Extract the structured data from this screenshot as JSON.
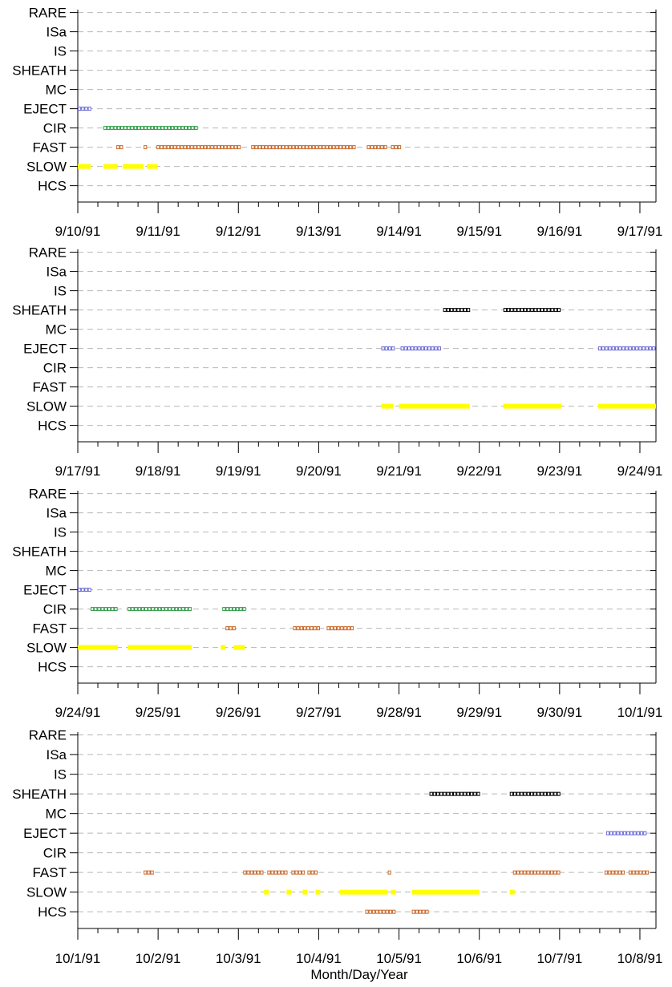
{
  "chart_data": {
    "type": "timeline",
    "xlabel": "Month/Day/Year",
    "categories": [
      "RARE",
      "ISa",
      "IS",
      "SHEATH",
      "MC",
      "EJECT",
      "CIR",
      "FAST",
      "SLOW",
      "HCS"
    ],
    "category_colors": {
      "EJECT": "#6b6bd6",
      "CIR": "#2e9b46",
      "FAST": "#c8682a",
      "SHEATH": "#000000",
      "SLOW": "#ffff00",
      "HCS": "#c8682a"
    },
    "grid": true,
    "panels": [
      {
        "ticks": [
          "9/10/91",
          "9/11/91",
          "9/12/91",
          "9/13/91",
          "9/14/91",
          "9/15/91",
          "9/16/91",
          "9/17/91"
        ],
        "segments": [
          {
            "cat": "EJECT",
            "start": 0.0,
            "end": 0.16
          },
          {
            "cat": "CIR",
            "start": 0.32,
            "end": 1.48
          },
          {
            "cat": "FAST",
            "start": 0.48,
            "end": 0.56
          },
          {
            "cat": "FAST",
            "start": 0.82,
            "end": 0.85
          },
          {
            "cat": "FAST",
            "start": 0.98,
            "end": 2.03
          },
          {
            "cat": "FAST",
            "start": 2.16,
            "end": 3.46
          },
          {
            "cat": "FAST",
            "start": 3.6,
            "end": 3.86
          },
          {
            "cat": "FAST",
            "start": 3.9,
            "end": 4.02
          },
          {
            "cat": "SLOW",
            "start": 0.0,
            "end": 0.16
          },
          {
            "cat": "SLOW",
            "start": 0.32,
            "end": 0.5
          },
          {
            "cat": "SLOW",
            "start": 0.56,
            "end": 0.82
          },
          {
            "cat": "SLOW",
            "start": 0.86,
            "end": 0.99
          }
        ]
      },
      {
        "ticks": [
          "9/17/91",
          "9/18/91",
          "9/19/91",
          "9/20/91",
          "9/21/91",
          "9/22/91",
          "9/23/91",
          "9/24/91"
        ],
        "segments": [
          {
            "cat": "SHEATH",
            "start": 4.55,
            "end": 4.88
          },
          {
            "cat": "SHEATH",
            "start": 5.3,
            "end": 6.02
          },
          {
            "cat": "EJECT",
            "start": 3.78,
            "end": 3.94
          },
          {
            "cat": "EJECT",
            "start": 4.02,
            "end": 4.54
          },
          {
            "cat": "EJECT",
            "start": 6.48,
            "end": 7.2
          },
          {
            "cat": "SLOW",
            "start": 3.78,
            "end": 3.93
          },
          {
            "cat": "SLOW",
            "start": 4.0,
            "end": 4.88
          },
          {
            "cat": "SLOW",
            "start": 5.3,
            "end": 6.02
          },
          {
            "cat": "SLOW",
            "start": 6.48,
            "end": 7.2
          }
        ]
      },
      {
        "ticks": [
          "9/24/91",
          "9/25/91",
          "9/26/91",
          "9/27/91",
          "9/28/91",
          "9/29/91",
          "9/30/91",
          "10/1/91"
        ],
        "segments": [
          {
            "cat": "EJECT",
            "start": 0.0,
            "end": 0.16
          },
          {
            "cat": "CIR",
            "start": 0.16,
            "end": 0.48
          },
          {
            "cat": "CIR",
            "start": 0.62,
            "end": 1.4
          },
          {
            "cat": "CIR",
            "start": 1.8,
            "end": 2.08
          },
          {
            "cat": "FAST",
            "start": 1.84,
            "end": 1.96
          },
          {
            "cat": "FAST",
            "start": 2.68,
            "end": 3.02
          },
          {
            "cat": "FAST",
            "start": 3.1,
            "end": 3.42
          },
          {
            "cat": "SLOW",
            "start": 0.0,
            "end": 0.5
          },
          {
            "cat": "SLOW",
            "start": 0.62,
            "end": 1.42
          },
          {
            "cat": "SLOW",
            "start": 1.78,
            "end": 1.84
          },
          {
            "cat": "SLOW",
            "start": 1.94,
            "end": 2.08
          }
        ]
      },
      {
        "ticks": [
          "10/1/91",
          "10/2/91",
          "10/3/91",
          "10/4/91",
          "10/5/91",
          "10/6/91",
          "10/7/91",
          "10/8/91"
        ],
        "segments": [
          {
            "cat": "SHEATH",
            "start": 4.38,
            "end": 5.0
          },
          {
            "cat": "SHEATH",
            "start": 5.38,
            "end": 6.0
          },
          {
            "cat": "EJECT",
            "start": 6.58,
            "end": 7.1
          },
          {
            "cat": "FAST",
            "start": 0.82,
            "end": 0.94
          },
          {
            "cat": "FAST",
            "start": 2.06,
            "end": 2.32
          },
          {
            "cat": "FAST",
            "start": 2.36,
            "end": 2.62
          },
          {
            "cat": "FAST",
            "start": 2.66,
            "end": 2.82
          },
          {
            "cat": "FAST",
            "start": 2.86,
            "end": 2.98
          },
          {
            "cat": "FAST",
            "start": 3.86,
            "end": 3.9
          },
          {
            "cat": "FAST",
            "start": 5.42,
            "end": 6.0
          },
          {
            "cat": "FAST",
            "start": 6.56,
            "end": 6.82
          },
          {
            "cat": "FAST",
            "start": 6.86,
            "end": 7.1
          },
          {
            "cat": "SLOW",
            "start": 2.32,
            "end": 2.38
          },
          {
            "cat": "SLOW",
            "start": 2.6,
            "end": 2.66
          },
          {
            "cat": "SLOW",
            "start": 2.8,
            "end": 2.86
          },
          {
            "cat": "SLOW",
            "start": 2.96,
            "end": 3.02
          },
          {
            "cat": "SLOW",
            "start": 3.26,
            "end": 3.86
          },
          {
            "cat": "SLOW",
            "start": 3.9,
            "end": 3.96
          },
          {
            "cat": "SLOW",
            "start": 4.16,
            "end": 5.0
          },
          {
            "cat": "SLOW",
            "start": 5.38,
            "end": 5.44
          },
          {
            "cat": "HCS",
            "start": 3.58,
            "end": 3.96
          },
          {
            "cat": "HCS",
            "start": 4.16,
            "end": 4.38
          }
        ]
      }
    ]
  }
}
